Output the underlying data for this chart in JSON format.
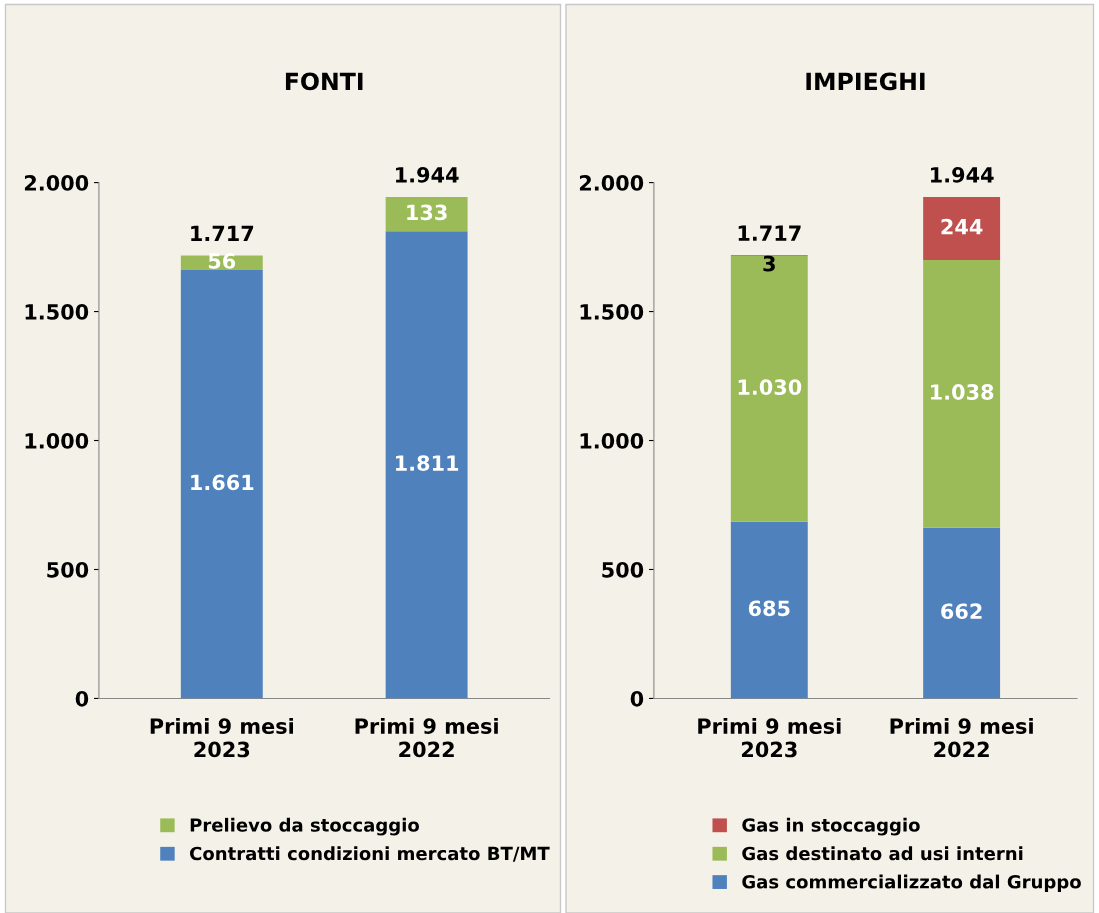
{
  "chart_data": [
    {
      "type": "bar",
      "title": "FONTI",
      "stacked": true,
      "legend": "bottom",
      "categories": [
        "Primi 9 mesi\n2023",
        "Primi 9 mesi\n2022"
      ],
      "ylim": [
        0,
        2000
      ],
      "yticks": [
        0,
        500,
        {
          "value": 1000,
          "label": "1.000"
        },
        {
          "value": 1500,
          "label": "1.500"
        },
        {
          "value": 2000,
          "label": "2.000"
        }
      ],
      "series": [
        {
          "name": "Contratti condizioni mercato BT/MT",
          "color": "#4f81bd",
          "values": [
            1661,
            1811
          ],
          "value_labels": [
            "1.661",
            "1.811"
          ]
        },
        {
          "name": "Prelievo da stoccaggio",
          "color": "#9bbb59",
          "values": [
            56,
            133
          ],
          "value_labels": [
            "56",
            "133"
          ]
        }
      ],
      "totals": [
        "1.717",
        "1.944"
      ]
    },
    {
      "type": "bar",
      "title": "IMPIEGHI",
      "stacked": true,
      "legend": "bottom",
      "categories": [
        "Primi 9 mesi\n2023",
        "Primi 9 mesi\n2022"
      ],
      "ylim": [
        0,
        2000
      ],
      "yticks": [
        0,
        500,
        {
          "value": 1000,
          "label": "1.000"
        },
        {
          "value": 1500,
          "label": "1.500"
        },
        {
          "value": 2000,
          "label": "2.000"
        }
      ],
      "series": [
        {
          "name": "Gas commercializzato dal Gruppo",
          "color": "#4f81bd",
          "values": [
            685,
            662
          ],
          "value_labels": [
            "685",
            "662"
          ]
        },
        {
          "name": "Gas destinato ad usi interni",
          "color": "#9bbb59",
          "values": [
            1030,
            1038
          ],
          "value_labels": [
            "1.030",
            "1.038"
          ]
        },
        {
          "name": "Gas in stoccaggio",
          "color": "#c0504d",
          "values": [
            3,
            244
          ],
          "value_labels": [
            "3",
            "244"
          ]
        }
      ],
      "totals": [
        "1.717",
        "1.944"
      ]
    }
  ]
}
